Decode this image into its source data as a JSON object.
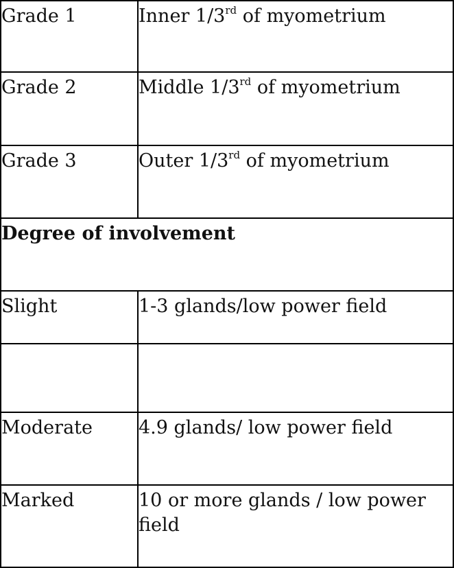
{
  "table": {
    "rows": [
      {
        "label": "Grade 1",
        "value": {
          "text": "Inner 1/3",
          "sup": "rd",
          "after": " of myometrium"
        }
      },
      {
        "label": "Grade 2",
        "value": {
          "text": "Middle 1/3",
          "sup": "rd",
          "after": " of myometrium"
        }
      },
      {
        "label": "Grade 3",
        "value": {
          "text": "Outer 1/3",
          "sup": "rd",
          "after": " of myometrium"
        }
      },
      {
        "heading": "Degree of involvement"
      },
      {
        "label": "Slight",
        "value": {
          "text": "1-3 glands/low power field"
        }
      },
      {
        "label": "Moderate",
        "value": {
          "text": "4.9 glands/ low power field"
        }
      },
      {
        "label": "Marked",
        "value": {
          "text": "10 or more glands / low power field"
        }
      }
    ]
  }
}
